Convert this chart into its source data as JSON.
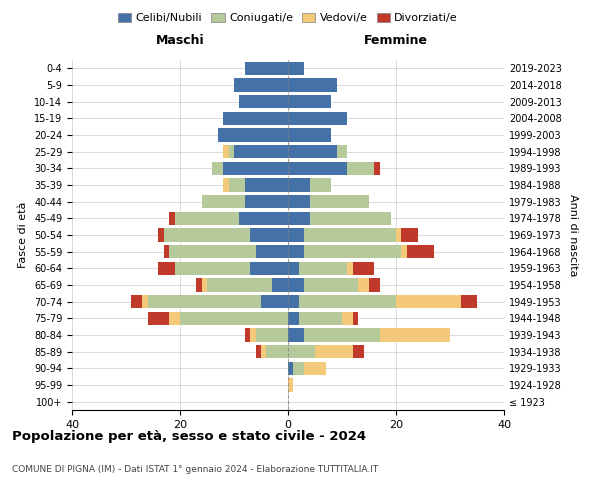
{
  "age_groups": [
    "100+",
    "95-99",
    "90-94",
    "85-89",
    "80-84",
    "75-79",
    "70-74",
    "65-69",
    "60-64",
    "55-59",
    "50-54",
    "45-49",
    "40-44",
    "35-39",
    "30-34",
    "25-29",
    "20-24",
    "15-19",
    "10-14",
    "5-9",
    "0-4"
  ],
  "birth_years": [
    "≤ 1923",
    "1924-1928",
    "1929-1933",
    "1934-1938",
    "1939-1943",
    "1944-1948",
    "1949-1953",
    "1954-1958",
    "1959-1963",
    "1964-1968",
    "1969-1973",
    "1974-1978",
    "1979-1983",
    "1984-1988",
    "1989-1993",
    "1994-1998",
    "1999-2003",
    "2004-2008",
    "2009-2013",
    "2014-2018",
    "2019-2023"
  ],
  "male": {
    "celibi": [
      0,
      0,
      0,
      0,
      0,
      0,
      5,
      3,
      7,
      6,
      7,
      9,
      8,
      8,
      12,
      10,
      13,
      12,
      9,
      10,
      8
    ],
    "coniugati": [
      0,
      0,
      0,
      4,
      6,
      20,
      21,
      12,
      14,
      16,
      16,
      12,
      8,
      3,
      2,
      1,
      0,
      0,
      0,
      0,
      0
    ],
    "vedovi": [
      0,
      0,
      0,
      1,
      1,
      2,
      1,
      1,
      0,
      0,
      0,
      0,
      0,
      1,
      0,
      1,
      0,
      0,
      0,
      0,
      0
    ],
    "divorziati": [
      0,
      0,
      0,
      1,
      1,
      4,
      2,
      1,
      3,
      1,
      1,
      1,
      0,
      0,
      0,
      0,
      0,
      0,
      0,
      0,
      0
    ]
  },
  "female": {
    "nubili": [
      0,
      0,
      1,
      0,
      3,
      2,
      2,
      3,
      2,
      3,
      3,
      4,
      4,
      4,
      11,
      9,
      8,
      11,
      8,
      9,
      3
    ],
    "coniugate": [
      0,
      0,
      2,
      5,
      14,
      8,
      18,
      10,
      9,
      18,
      17,
      15,
      11,
      4,
      5,
      2,
      0,
      0,
      0,
      0,
      0
    ],
    "vedove": [
      0,
      1,
      4,
      7,
      13,
      2,
      12,
      2,
      1,
      1,
      1,
      0,
      0,
      0,
      0,
      0,
      0,
      0,
      0,
      0,
      0
    ],
    "divorziate": [
      0,
      0,
      0,
      2,
      0,
      1,
      3,
      2,
      4,
      5,
      3,
      0,
      0,
      0,
      1,
      0,
      0,
      0,
      0,
      0,
      0
    ]
  },
  "colors": {
    "celibi_nubili": "#4472a8",
    "coniugati": "#b5c99a",
    "vedovi": "#f5c97a",
    "divorziati": "#c0392b"
  },
  "title": "Popolazione per età, sesso e stato civile - 2024",
  "subtitle": "COMUNE DI PIGNA (IM) - Dati ISTAT 1° gennaio 2024 - Elaborazione TUTTITALIA.IT",
  "xlabel_left": "Maschi",
  "xlabel_right": "Femmine",
  "ylabel_left": "Fasce di età",
  "ylabel_right": "Anni di nascita",
  "xlim": 40,
  "legend_labels": [
    "Celibi/Nubili",
    "Coniugati/e",
    "Vedovi/e",
    "Divorziati/e"
  ],
  "background_color": "#ffffff",
  "bar_height": 0.8
}
